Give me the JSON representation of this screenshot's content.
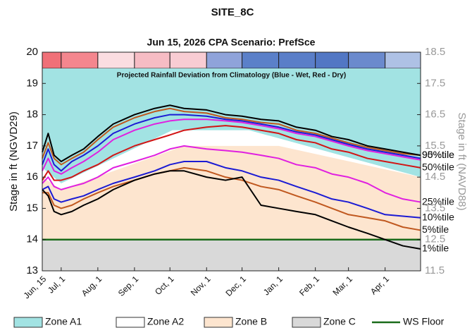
{
  "chart_data": {
    "type": "line",
    "title": "SITE_8C",
    "subtitle": "Jun 15, 2026  CPA Scenario: PrefSce",
    "ylabel": "Stage in ft (NGVD29)",
    "y2label": "Stage in ft (NAVD88)",
    "xlim": [
      0,
      320
    ],
    "xticks": [
      {
        "value": 0,
        "label": "Jun, 15"
      },
      {
        "value": 16,
        "label": "Jul, 1"
      },
      {
        "value": 47,
        "label": "Aug, 1"
      },
      {
        "value": 78,
        "label": "Sep, 1"
      },
      {
        "value": 108,
        "label": "Oct, 1"
      },
      {
        "value": 139,
        "label": "Nov, 1"
      },
      {
        "value": 169,
        "label": "Dec, 1"
      },
      {
        "value": 200,
        "label": "Jan, 1"
      },
      {
        "value": 231,
        "label": "Feb, 1"
      },
      {
        "value": 259,
        "label": "Mar, 1"
      },
      {
        "value": 290,
        "label": "Apr, 1"
      }
    ],
    "ylim": [
      13,
      20
    ],
    "yticks": [
      13,
      14,
      15,
      16,
      17,
      18,
      19,
      20
    ],
    "y2lim": [
      11.5,
      18.5
    ],
    "y2ticks": [
      11.5,
      12.5,
      13.5,
      14.5,
      15.5,
      16.5,
      17.5,
      18.5
    ],
    "rainfall_bar": {
      "label": "Projected Rainfall Deviation from Climatology (Blue - Wet, Red - Dry)",
      "colors": [
        "#f07078",
        "#f4868e",
        "#fbdde1",
        "#f6bcc4",
        "#f8ccd3",
        "#8fa3da",
        "#5b80c9",
        "#5a7ec8",
        "#5277c4",
        "#6b8acd",
        "#aec1e5"
      ]
    },
    "zones": [
      {
        "name": "Zone A1",
        "color": "#a2e3e3",
        "x": [
          0,
          16,
          110,
          175,
          320
        ],
        "bottom": [
          16.3,
          15.8,
          17.5,
          17.5,
          16.0
        ]
      },
      {
        "name": "Zone A2",
        "color": "#ffffff",
        "x": [
          0,
          16,
          120,
          200,
          320
        ],
        "bottom": [
          16.0,
          15.6,
          17.0,
          17.0,
          16.0
        ]
      },
      {
        "name": "Zone B",
        "color": "#fde5cf",
        "x": [
          0,
          320
        ],
        "bottom": [
          14,
          14
        ]
      },
      {
        "name": "Zone C",
        "color": "#d9d9d9",
        "x": [
          0,
          320
        ],
        "bottom": [
          13,
          13
        ]
      }
    ],
    "floor": {
      "name": "WS Floor",
      "color": "#1a6b1a",
      "value": 14
    },
    "x": [
      0,
      5,
      10,
      16,
      25,
      35,
      47,
      60,
      78,
      95,
      108,
      120,
      139,
      155,
      169,
      185,
      200,
      215,
      231,
      245,
      259,
      275,
      290,
      305,
      320
    ],
    "lines": [
      {
        "color": "#e020e0",
        "values": [
          16.2,
          16.6,
          16.2,
          16.1,
          16.3,
          16.5,
          16.8,
          17.2,
          17.5,
          17.7,
          17.8,
          17.85,
          17.85,
          17.8,
          17.75,
          17.65,
          17.55,
          17.4,
          17.3,
          17.15,
          17.0,
          16.85,
          16.75,
          16.65,
          16.55
        ]
      },
      {
        "color": "#1b1bd4",
        "values": [
          16.4,
          16.9,
          16.4,
          16.2,
          16.5,
          16.7,
          17.0,
          17.4,
          17.7,
          17.9,
          18.0,
          18.0,
          17.95,
          17.85,
          17.8,
          17.7,
          17.6,
          17.45,
          17.35,
          17.2,
          17.05,
          16.9,
          16.8,
          16.7,
          16.6
        ]
      },
      {
        "color": "#c0581f",
        "label": "90%tile",
        "values": [
          16.6,
          17.1,
          16.6,
          16.4,
          16.6,
          16.8,
          17.2,
          17.6,
          17.9,
          18.1,
          18.2,
          18.1,
          18.05,
          17.9,
          17.85,
          17.75,
          17.7,
          17.5,
          17.4,
          17.25,
          17.1,
          16.95,
          16.85,
          16.75,
          16.7
        ]
      },
      {
        "color": "#000000",
        "label": "95%tile",
        "values": [
          16.8,
          17.4,
          16.7,
          16.5,
          16.7,
          16.9,
          17.3,
          17.7,
          18.0,
          18.2,
          18.3,
          18.2,
          18.15,
          18.0,
          17.95,
          17.85,
          17.8,
          17.6,
          17.5,
          17.3,
          17.2,
          17.0,
          16.9,
          16.8,
          16.7
        ]
      },
      {
        "color": "#d21414",
        "label": "50%tile",
        "values": [
          15.9,
          16.2,
          15.9,
          15.9,
          16.0,
          16.2,
          16.4,
          16.7,
          17.0,
          17.2,
          17.35,
          17.5,
          17.6,
          17.65,
          17.6,
          17.5,
          17.4,
          17.2,
          17.1,
          16.9,
          16.8,
          16.6,
          16.5,
          16.4,
          16.3
        ]
      },
      {
        "color": "#e020e0",
        "label": "25%tile",
        "values": [
          15.8,
          16.0,
          15.7,
          15.6,
          15.7,
          15.8,
          16.0,
          16.3,
          16.5,
          16.7,
          16.9,
          17.0,
          16.9,
          16.85,
          16.8,
          16.7,
          16.6,
          16.4,
          16.3,
          16.1,
          16.0,
          15.8,
          15.5,
          15.3,
          15.2
        ]
      },
      {
        "color": "#1b1bd4",
        "label": "10%tile",
        "values": [
          15.6,
          15.7,
          15.3,
          15.2,
          15.3,
          15.4,
          15.6,
          15.8,
          16.0,
          16.2,
          16.4,
          16.5,
          16.5,
          16.3,
          16.2,
          16.0,
          15.9,
          15.7,
          15.5,
          15.3,
          15.2,
          15.0,
          14.8,
          14.75,
          14.7
        ]
      },
      {
        "color": "#c0581f",
        "label": "5%tile",
        "values": [
          15.5,
          15.5,
          15.1,
          15.0,
          15.1,
          15.3,
          15.5,
          15.7,
          15.9,
          16.1,
          16.2,
          16.3,
          16.2,
          16.0,
          15.9,
          15.7,
          15.6,
          15.4,
          15.2,
          15.0,
          14.8,
          14.7,
          14.6,
          14.4,
          14.3
        ]
      },
      {
        "color": "#000000",
        "label": "1%tile",
        "values": [
          15.6,
          15.4,
          14.9,
          14.8,
          14.9,
          15.1,
          15.3,
          15.6,
          15.9,
          16.1,
          16.2,
          16.2,
          16.0,
          15.9,
          16.0,
          15.1,
          15.0,
          14.9,
          14.8,
          14.6,
          14.4,
          14.2,
          14.0,
          13.8,
          13.7
        ]
      }
    ]
  }
}
